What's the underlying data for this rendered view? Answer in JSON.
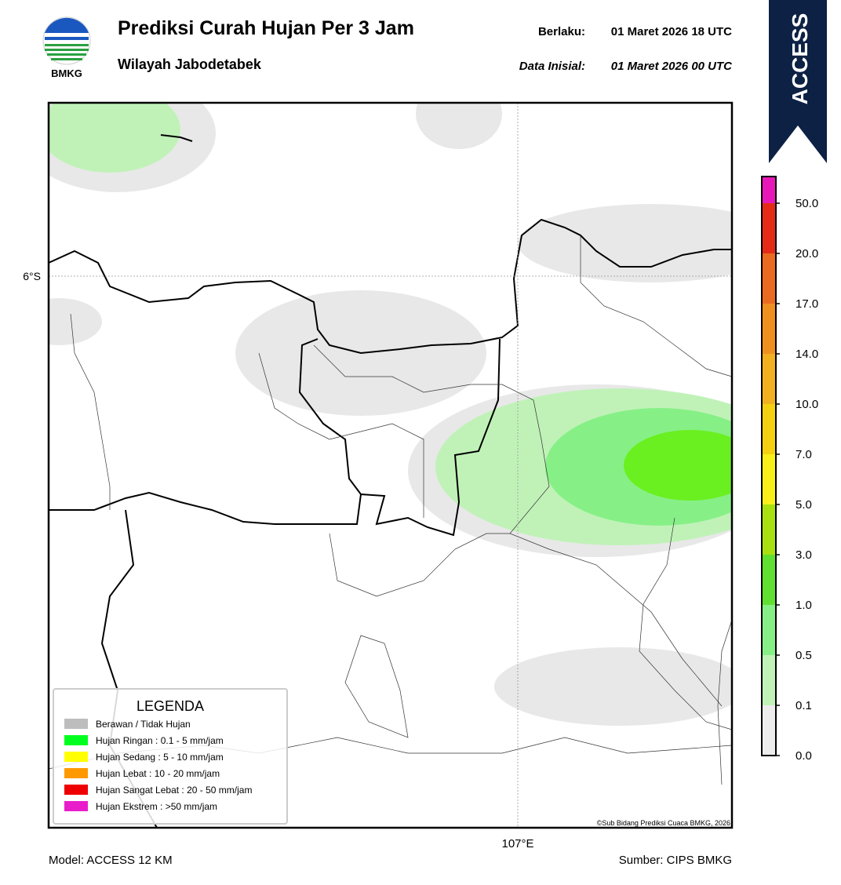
{
  "header": {
    "logo_text": "BMKG",
    "title": "Prediksi Curah Hujan Per 3 Jam",
    "subtitle": "Wilayah Jabodetabek",
    "valid_label": "Berlaku:",
    "valid_time": "01 Maret 2026 18 UTC",
    "init_label": "Data Inisial:",
    "init_time": "01 Maret 2026 00 UTC"
  },
  "model_badge": "ACCESS",
  "map": {
    "lat_label": "6°S",
    "lon_label": "107°E",
    "credit": "©Sub Bidang Prediksi Cuaca BMKG, 2026"
  },
  "legend": {
    "title": "LEGENDA",
    "items": [
      {
        "label": "Berawan / Tidak Hujan",
        "color": "#bdbdbd"
      },
      {
        "label": "Hujan Ringan : 0.1 - 5 mm/jam",
        "color": "#00ff1e"
      },
      {
        "label": "Hujan Sedang : 5 - 10 mm/jam",
        "color": "#ffff00"
      },
      {
        "label": "Hujan Lebat : 10 - 20 mm/jam",
        "color": "#ff9900"
      },
      {
        "label": "Hujan Sangat Lebat : 20 - 50 mm/jam",
        "color": "#ee0000"
      },
      {
        "label": "Hujan Ekstrem : >50 mm/jam",
        "color": "#e81ecb"
      }
    ]
  },
  "colorbar": {
    "labels": [
      "0.0",
      "0.1",
      "0.5",
      "1.0",
      "3.0",
      "5.0",
      "7.0",
      "10.0",
      "14.0",
      "17.0",
      "20.0",
      "50.0"
    ],
    "colors": [
      "#ececec",
      "#c0f2b8",
      "#86f086",
      "#60e030",
      "#a8e010",
      "#f8f018",
      "#f4d010",
      "#f0b020",
      "#ee9020",
      "#ea6a20",
      "#e62a18",
      "#e818b8"
    ]
  },
  "footer": {
    "model": "Model: ACCESS 12 KM",
    "source": "Sumber: CIPS BMKG"
  }
}
